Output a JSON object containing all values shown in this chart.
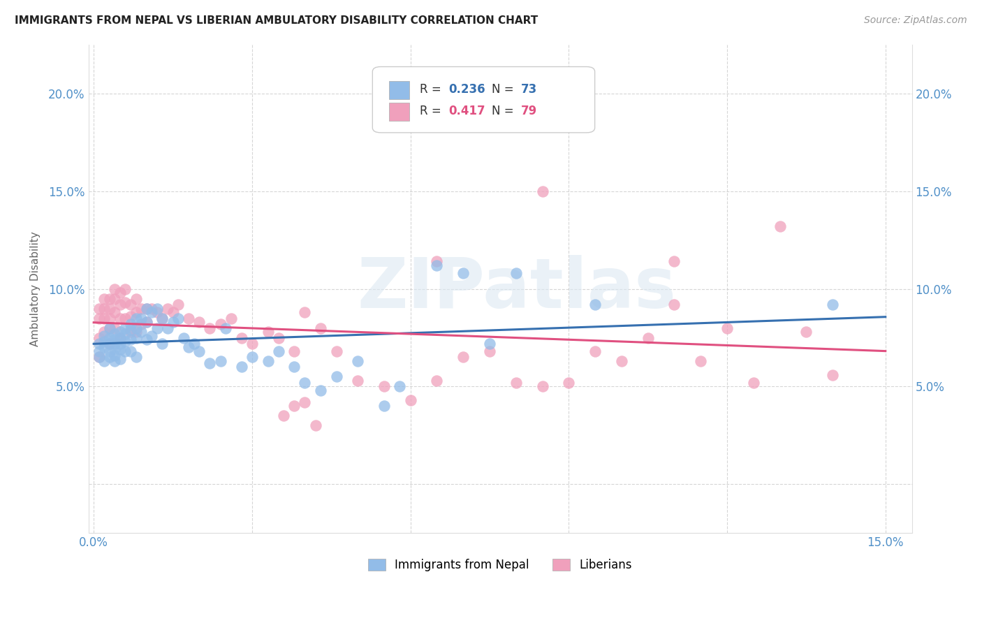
{
  "title": "IMMIGRANTS FROM NEPAL VS LIBERIAN AMBULATORY DISABILITY CORRELATION CHART",
  "source": "Source: ZipAtlas.com",
  "ylabel": "Ambulatory Disability",
  "xlim": [
    -0.001,
    0.155
  ],
  "ylim": [
    -0.025,
    0.225
  ],
  "xticks": [
    0.0,
    0.03,
    0.06,
    0.09,
    0.12,
    0.15
  ],
  "yticks": [
    0.0,
    0.05,
    0.1,
    0.15,
    0.2
  ],
  "xtick_labels": [
    "0.0%",
    "",
    "",
    "",
    "",
    "15.0%"
  ],
  "ytick_labels": [
    "",
    "5.0%",
    "10.0%",
    "15.0%",
    "20.0%"
  ],
  "nepal_color": "#92bce8",
  "liberia_color": "#f0a0bc",
  "nepal_line_color": "#3670b0",
  "liberia_line_color": "#e05080",
  "background_color": "#ffffff",
  "grid_color": "#cccccc",
  "watermark": "ZIPatlas",
  "nepal_x": [
    0.001,
    0.001,
    0.001,
    0.002,
    0.002,
    0.002,
    0.002,
    0.003,
    0.003,
    0.003,
    0.003,
    0.003,
    0.004,
    0.004,
    0.004,
    0.004,
    0.004,
    0.004,
    0.005,
    0.005,
    0.005,
    0.005,
    0.005,
    0.006,
    0.006,
    0.006,
    0.006,
    0.007,
    0.007,
    0.007,
    0.007,
    0.008,
    0.008,
    0.008,
    0.008,
    0.009,
    0.009,
    0.01,
    0.01,
    0.01,
    0.011,
    0.011,
    0.012,
    0.012,
    0.013,
    0.013,
    0.014,
    0.015,
    0.016,
    0.017,
    0.018,
    0.019,
    0.02,
    0.022,
    0.024,
    0.025,
    0.028,
    0.03,
    0.033,
    0.035,
    0.038,
    0.04,
    0.043,
    0.046,
    0.05,
    0.055,
    0.058,
    0.065,
    0.07,
    0.075,
    0.08,
    0.095,
    0.14
  ],
  "nepal_y": [
    0.068,
    0.072,
    0.065,
    0.073,
    0.076,
    0.07,
    0.063,
    0.075,
    0.072,
    0.068,
    0.065,
    0.08,
    0.077,
    0.074,
    0.072,
    0.069,
    0.066,
    0.063,
    0.078,
    0.075,
    0.072,
    0.069,
    0.064,
    0.08,
    0.077,
    0.073,
    0.068,
    0.082,
    0.079,
    0.074,
    0.068,
    0.085,
    0.08,
    0.075,
    0.065,
    0.085,
    0.078,
    0.09,
    0.083,
    0.074,
    0.088,
    0.076,
    0.09,
    0.08,
    0.085,
    0.072,
    0.08,
    0.083,
    0.085,
    0.075,
    0.07,
    0.072,
    0.068,
    0.062,
    0.063,
    0.08,
    0.06,
    0.065,
    0.063,
    0.068,
    0.06,
    0.052,
    0.048,
    0.055,
    0.063,
    0.04,
    0.05,
    0.112,
    0.108,
    0.072,
    0.108,
    0.092,
    0.092
  ],
  "liberia_x": [
    0.001,
    0.001,
    0.001,
    0.001,
    0.002,
    0.002,
    0.002,
    0.002,
    0.003,
    0.003,
    0.003,
    0.003,
    0.003,
    0.004,
    0.004,
    0.004,
    0.004,
    0.005,
    0.005,
    0.005,
    0.005,
    0.006,
    0.006,
    0.006,
    0.007,
    0.007,
    0.007,
    0.008,
    0.008,
    0.008,
    0.009,
    0.009,
    0.01,
    0.01,
    0.011,
    0.012,
    0.013,
    0.014,
    0.015,
    0.016,
    0.018,
    0.02,
    0.022,
    0.024,
    0.026,
    0.028,
    0.03,
    0.033,
    0.035,
    0.038,
    0.04,
    0.043,
    0.046,
    0.05,
    0.055,
    0.06,
    0.065,
    0.07,
    0.075,
    0.08,
    0.085,
    0.09,
    0.095,
    0.1,
    0.105,
    0.11,
    0.115,
    0.12,
    0.125,
    0.13,
    0.135,
    0.14,
    0.085,
    0.11,
    0.065,
    0.04,
    0.036,
    0.038,
    0.042
  ],
  "liberia_y": [
    0.065,
    0.075,
    0.085,
    0.09,
    0.095,
    0.09,
    0.085,
    0.078,
    0.095,
    0.09,
    0.085,
    0.08,
    0.072,
    0.1,
    0.095,
    0.088,
    0.08,
    0.098,
    0.092,
    0.085,
    0.075,
    0.1,
    0.093,
    0.085,
    0.092,
    0.086,
    0.078,
    0.095,
    0.088,
    0.078,
    0.09,
    0.082,
    0.09,
    0.083,
    0.09,
    0.088,
    0.085,
    0.09,
    0.088,
    0.092,
    0.085,
    0.083,
    0.08,
    0.082,
    0.085,
    0.075,
    0.072,
    0.078,
    0.075,
    0.068,
    0.088,
    0.08,
    0.068,
    0.053,
    0.05,
    0.043,
    0.053,
    0.065,
    0.068,
    0.052,
    0.05,
    0.052,
    0.068,
    0.063,
    0.075,
    0.092,
    0.063,
    0.08,
    0.052,
    0.132,
    0.078,
    0.056,
    0.15,
    0.114,
    0.114,
    0.042,
    0.035,
    0.04,
    0.03
  ]
}
